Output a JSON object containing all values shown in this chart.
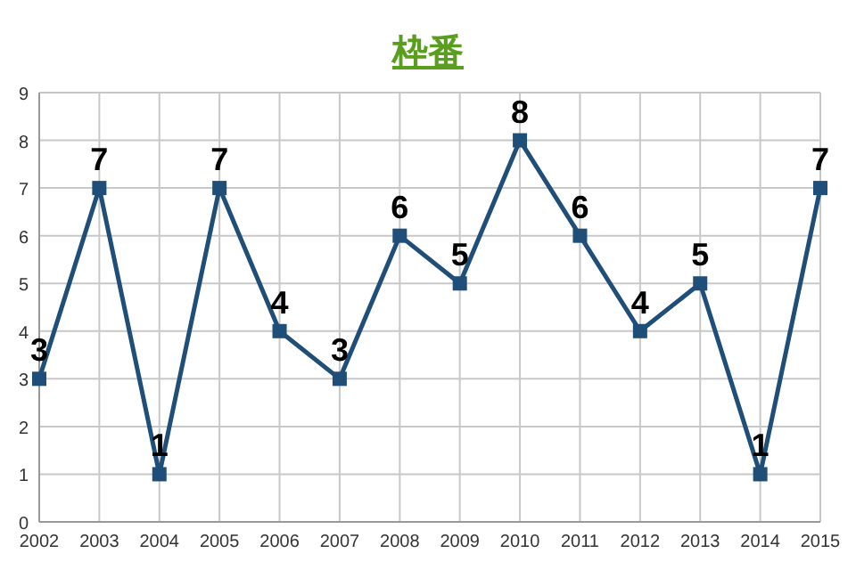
{
  "chart_data": {
    "type": "line",
    "title": "枠番",
    "categories": [
      "2002",
      "2003",
      "2004",
      "2005",
      "2006",
      "2007",
      "2008",
      "2009",
      "2010",
      "2011",
      "2012",
      "2013",
      "2014",
      "2015"
    ],
    "series": [
      {
        "color": "#1f4e79",
        "values": [
          3,
          7,
          1,
          7,
          4,
          3,
          6,
          5,
          8,
          6,
          4,
          5,
          1,
          7
        ]
      }
    ],
    "ylim": [
      0,
      9
    ],
    "yticks": [
      0,
      1,
      2,
      3,
      4,
      5,
      6,
      7,
      8,
      9
    ],
    "grid": true,
    "marker": "square",
    "line_style": "solid",
    "data_labels": true
  }
}
